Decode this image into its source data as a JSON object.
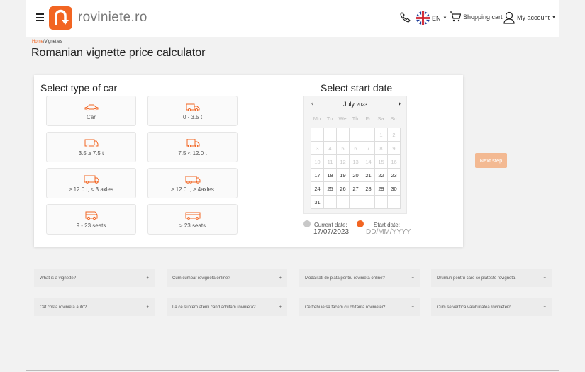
{
  "header": {
    "brand": "roviniete.ro",
    "language": "EN",
    "cart": "Shopping cart",
    "account": "My account"
  },
  "breadcrumb": {
    "home": "Home",
    "sep": "/",
    "current": "Vignettes"
  },
  "title": "Romanian vignette price calculator",
  "car_section": {
    "title": "Select type of car",
    "vehicles": [
      {
        "label": "Car",
        "icon": "car-icon"
      },
      {
        "label": "0 - 3.5 t",
        "icon": "van-icon"
      },
      {
        "label": "3.5 ≥ 7.5 t",
        "icon": "van-large-icon"
      },
      {
        "label": "7.5 < 12.0 t",
        "icon": "truck-icon"
      },
      {
        "label": "≥ 12.0 t, ≤ 3 axles",
        "icon": "truck-large-icon"
      },
      {
        "label": "≥ 12.0 t, ≥ 4axles",
        "icon": "truck-trailer-icon"
      },
      {
        "label": "9 - 23 seats",
        "icon": "minibus-icon"
      },
      {
        "label": "> 23 seats",
        "icon": "bus-icon"
      }
    ]
  },
  "date_section": {
    "title": "Select start date",
    "month": "July",
    "year": "2023",
    "weekdays": [
      "Mo",
      "Tu",
      "We",
      "Th",
      "Fr",
      "Sa",
      "Su"
    ],
    "first_weekday_offset": 5,
    "days_in_month": 31,
    "first_enabled_day": 17,
    "current_label": "Current date:",
    "current_value": "17/07/2023",
    "start_label": "Start date:",
    "start_value": "DD/MM/YYYY"
  },
  "next_step": "Next step",
  "faq": [
    "What is a vignette?",
    "Cum cumpar rovigneta online?",
    "Modalitati de plata pentru rovinieta online?",
    "Drumuri pentru care se plateste rovigneta",
    "Cat costa rovinieta auto?",
    "La ce suntem atenti cand achitam rovinieta?",
    "Ce trebuie sa facem cu chitanta rovinietei?",
    "Cum se verifica valabilitatea rovinietei?"
  ],
  "colors": {
    "accent": "#f26522",
    "next_button": "#f3b992",
    "current_dot": "#c8c8c8"
  }
}
